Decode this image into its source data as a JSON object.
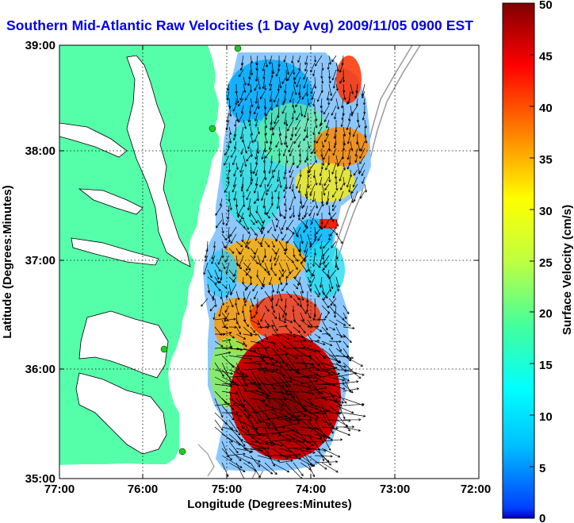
{
  "title": "Southern Mid-Atlantic Raw Velocities (1 Day Avg) 2009/11/05 0900 EST",
  "axes": {
    "xlabel": "Longitude (Degrees:Minutes)",
    "ylabel": "Latitude (Degrees:Minutes)",
    "x_ticks": [
      "77:00",
      "76:00",
      "75:00",
      "74:00",
      "73:00",
      "72:00"
    ],
    "y_ticks": [
      "39:00",
      "38:00",
      "37:00",
      "36:00",
      "35:00"
    ],
    "xlim": [
      -77,
      -72
    ],
    "ylim": [
      35,
      39
    ],
    "grid": "dotted"
  },
  "colorbar": {
    "label": "Surface Velocity (cm/s)",
    "ticks": [
      "50",
      "45",
      "40",
      "35",
      "30",
      "25",
      "20",
      "15",
      "10",
      "5",
      "0"
    ],
    "range": [
      0,
      50
    ],
    "colormap": "jet"
  },
  "colors": {
    "land": "#55ffaa",
    "water": "#ffffff",
    "title": "#0000ee",
    "coastline": "#000000",
    "bathymetry": "#999999",
    "station": "#22cc22"
  }
}
